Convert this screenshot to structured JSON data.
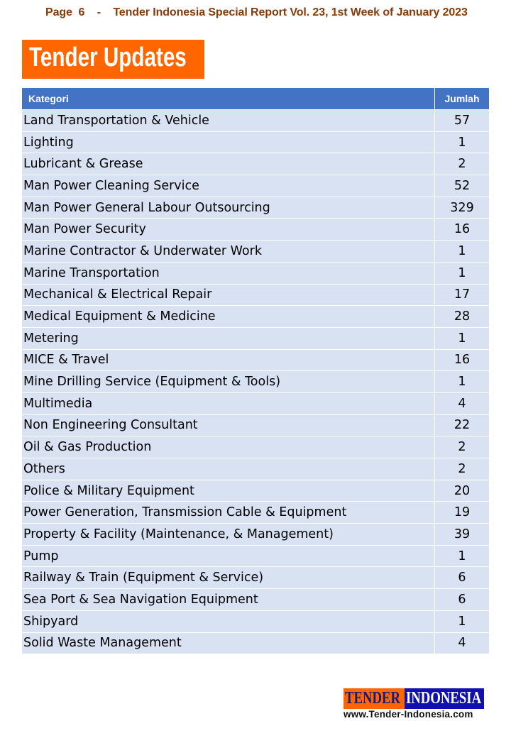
{
  "header": {
    "text": "Page  6    -    Tender Indonesia Special Report Vol. 23, 1st Week of January 2023"
  },
  "banner": {
    "title": "Tender Updates"
  },
  "table": {
    "columns": [
      "Kategori",
      "Jumlah"
    ],
    "rows": [
      [
        "Land Transportation & Vehicle",
        "57"
      ],
      [
        "Lighting",
        "1"
      ],
      [
        "Lubricant & Grease",
        "2"
      ],
      [
        "Man Power Cleaning Service",
        "52"
      ],
      [
        "Man Power General Labour Outsourcing",
        "329"
      ],
      [
        "Man Power Security",
        "16"
      ],
      [
        "Marine Contractor & Underwater Work",
        "1"
      ],
      [
        "Marine Transportation",
        "1"
      ],
      [
        "Mechanical & Electrical Repair",
        "17"
      ],
      [
        "Medical Equipment & Medicine",
        "28"
      ],
      [
        "Metering",
        "1"
      ],
      [
        "MICE & Travel",
        "16"
      ],
      [
        "Mine Drilling Service (Equipment & Tools)",
        "1"
      ],
      [
        "Multimedia",
        "4"
      ],
      [
        "Non Engineering Consultant",
        "22"
      ],
      [
        "Oil & Gas Production",
        "2"
      ],
      [
        "Others",
        "2"
      ],
      [
        "Police & Military Equipment",
        "20"
      ],
      [
        "Power Generation, Transmission Cable & Equipment",
        "19"
      ],
      [
        "Property & Facility (Maintenance, & Management)",
        "39"
      ],
      [
        "Pump",
        "1"
      ],
      [
        "Railway & Train (Equipment & Service)",
        "6"
      ],
      [
        "Sea Port & Sea Navigation Equipment",
        "6"
      ],
      [
        "Shipyard",
        "1"
      ],
      [
        "Solid Waste Management",
        "4"
      ]
    ]
  },
  "logo": {
    "part1": "TENDER",
    "part2": "INDONESIA",
    "url": "www.Tender-Indonesia.com"
  },
  "colors": {
    "header_text": "#843c0c",
    "banner": "#ff6600",
    "table_header": "#4472c4",
    "row": "#d9e2f3"
  }
}
